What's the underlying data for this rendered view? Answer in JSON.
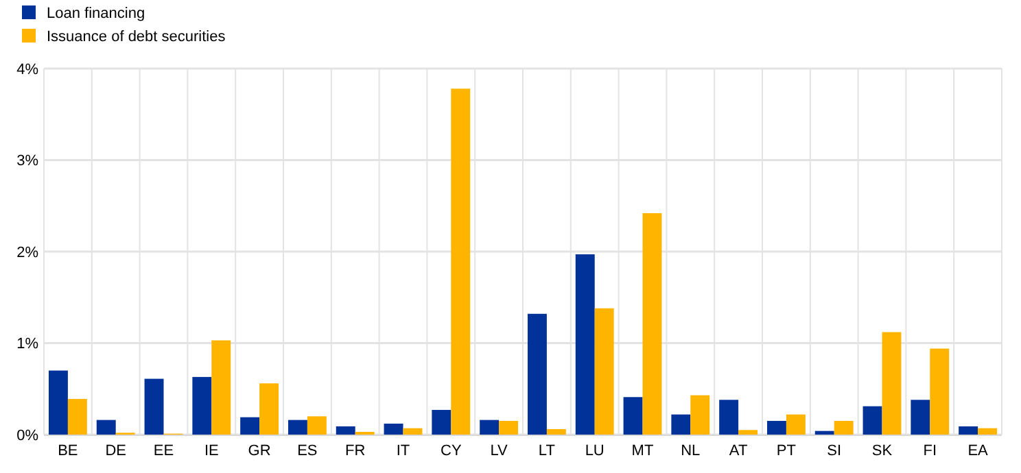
{
  "chart_data": {
    "type": "bar",
    "categories": [
      "BE",
      "DE",
      "EE",
      "IE",
      "GR",
      "ES",
      "FR",
      "IT",
      "CY",
      "LV",
      "LT",
      "LU",
      "MT",
      "NL",
      "AT",
      "PT",
      "SI",
      "SK",
      "FI",
      "EA"
    ],
    "series": [
      {
        "name": "Loan financing",
        "color": "#003299",
        "values": [
          0.7,
          0.16,
          0.61,
          0.63,
          0.19,
          0.16,
          0.09,
          0.12,
          0.27,
          0.16,
          1.32,
          1.97,
          0.41,
          0.22,
          0.38,
          0.15,
          0.04,
          0.31,
          0.38,
          0.09
        ]
      },
      {
        "name": "Issuance of debt securities",
        "color": "#ffb400",
        "values": [
          0.39,
          0.02,
          0.01,
          1.03,
          0.56,
          0.2,
          0.03,
          0.07,
          3.78,
          0.15,
          0.06,
          1.38,
          2.42,
          0.43,
          0.05,
          0.22,
          0.15,
          1.12,
          0.94,
          0.07
        ]
      }
    ],
    "ylim": [
      0,
      4
    ],
    "yticks": [
      {
        "value": 0,
        "label": "0%"
      },
      {
        "value": 1,
        "label": "1%"
      },
      {
        "value": 2,
        "label": "2%"
      },
      {
        "value": 3,
        "label": "3%"
      },
      {
        "value": 4,
        "label": "4%"
      }
    ],
    "grid": true,
    "legend": "top left"
  }
}
